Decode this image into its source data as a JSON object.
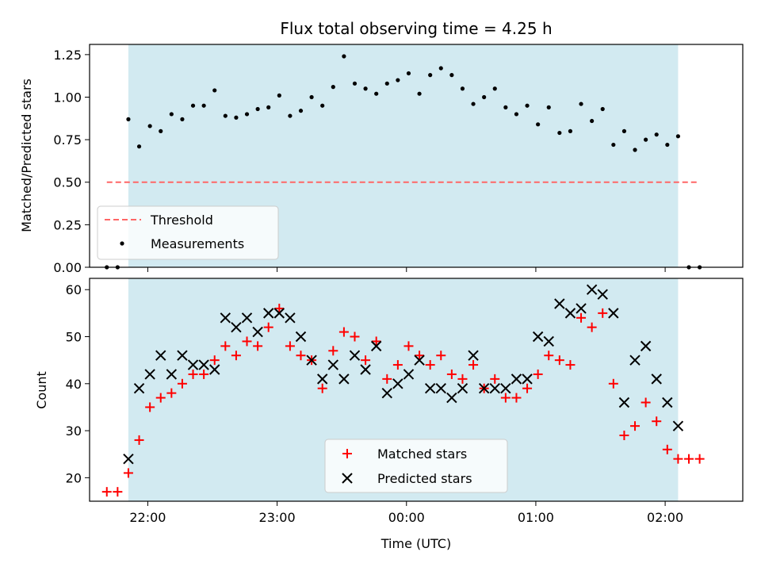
{
  "chart_data": [
    {
      "type": "scatter",
      "title": "Flux total observing time = 4.25 h",
      "xlabel": "",
      "ylabel": "Matched/Predicted stars",
      "ylim": [
        0,
        1.31
      ],
      "yticks": [
        "0.00",
        "0.25",
        "0.50",
        "0.75",
        "1.00",
        "1.25"
      ],
      "x_ticks": [
        "22:00",
        "23:00",
        "00:00",
        "01:00",
        "02:00"
      ],
      "x_range": [
        "21:33",
        "02:36"
      ],
      "observing_window": [
        "21:51",
        "02:06"
      ],
      "window_color": "#add8e6",
      "legend_position": "lower-left",
      "threshold": {
        "name": "Threshold",
        "value": 0.5,
        "x_range": [
          "21:41",
          "02:16"
        ],
        "color": "#ff6666",
        "style": "dashed"
      },
      "series": [
        {
          "name": "Measurements",
          "color": "#000000",
          "marker": "dot",
          "x": [
            "21:41",
            "21:46",
            "21:51",
            "21:56",
            "22:01",
            "22:06",
            "22:11",
            "22:16",
            "22:21",
            "22:26",
            "22:31",
            "22:36",
            "22:41",
            "22:46",
            "22:51",
            "22:56",
            "23:01",
            "23:06",
            "23:11",
            "23:16",
            "23:21",
            "23:26",
            "23:31",
            "23:36",
            "23:41",
            "23:46",
            "23:51",
            "23:56",
            "00:01",
            "00:06",
            "00:11",
            "00:16",
            "00:21",
            "00:26",
            "00:31",
            "00:36",
            "00:41",
            "00:46",
            "00:51",
            "00:56",
            "01:01",
            "01:06",
            "01:11",
            "01:16",
            "01:21",
            "01:26",
            "01:31",
            "01:36",
            "01:41",
            "01:46",
            "01:51",
            "01:56",
            "02:01",
            "02:06",
            "02:11",
            "02:16"
          ],
          "y": [
            0.0,
            0.0,
            0.87,
            0.71,
            0.83,
            0.8,
            0.9,
            0.87,
            0.95,
            0.95,
            1.04,
            0.89,
            0.88,
            0.9,
            0.93,
            0.94,
            1.01,
            0.89,
            0.92,
            1.0,
            0.95,
            1.06,
            1.24,
            1.08,
            1.05,
            1.02,
            1.08,
            1.1,
            1.14,
            1.02,
            1.13,
            1.17,
            1.13,
            1.05,
            0.96,
            1.0,
            1.05,
            0.94,
            0.9,
            0.95,
            0.84,
            0.94,
            0.79,
            0.8,
            0.96,
            0.86,
            0.93,
            0.72,
            0.8,
            0.69,
            0.75,
            0.78,
            0.72,
            0.77,
            0.0,
            0.0
          ]
        }
      ]
    },
    {
      "type": "scatter",
      "title": "",
      "xlabel": "Time (UTC)",
      "ylabel": "Count",
      "ylim": [
        15,
        62.4
      ],
      "yticks": [
        "20",
        "30",
        "40",
        "50",
        "60"
      ],
      "x_ticks": [
        "22:00",
        "23:00",
        "00:00",
        "01:00",
        "02:00"
      ],
      "x_range": [
        "21:33",
        "02:36"
      ],
      "observing_window": [
        "21:51",
        "02:06"
      ],
      "window_color": "#add8e6",
      "legend_position": "lower-center",
      "series": [
        {
          "name": "Matched stars",
          "color": "#ff0000",
          "marker": "plus",
          "x": [
            "21:41",
            "21:46",
            "21:51",
            "21:56",
            "22:01",
            "22:06",
            "22:11",
            "22:16",
            "22:21",
            "22:26",
            "22:31",
            "22:36",
            "22:41",
            "22:46",
            "22:51",
            "22:56",
            "23:01",
            "23:06",
            "23:11",
            "23:16",
            "23:21",
            "23:26",
            "23:31",
            "23:36",
            "23:41",
            "23:46",
            "23:51",
            "23:56",
            "00:01",
            "00:06",
            "00:11",
            "00:16",
            "00:21",
            "00:26",
            "00:31",
            "00:36",
            "00:41",
            "00:46",
            "00:51",
            "00:56",
            "01:01",
            "01:06",
            "01:11",
            "01:16",
            "01:21",
            "01:26",
            "01:31",
            "01:36",
            "01:41",
            "01:46",
            "01:51",
            "01:56",
            "02:01",
            "02:06",
            "02:11",
            "02:16"
          ],
          "y": [
            17,
            17,
            21,
            28,
            35,
            37,
            38,
            40,
            42,
            42,
            45,
            48,
            46,
            49,
            48,
            52,
            56,
            48,
            46,
            45,
            39,
            47,
            51,
            50,
            45,
            49,
            41,
            44,
            48,
            46,
            44,
            46,
            42,
            41,
            44,
            39,
            41,
            37,
            37,
            39,
            42,
            46,
            45,
            44,
            54,
            52,
            55,
            40,
            29,
            31,
            36,
            32,
            26,
            24,
            24,
            24
          ]
        },
        {
          "name": "Predicted stars",
          "color": "#000000",
          "marker": "cross",
          "x": [
            "21:51",
            "21:56",
            "22:01",
            "22:06",
            "22:11",
            "22:16",
            "22:21",
            "22:26",
            "22:31",
            "22:36",
            "22:41",
            "22:46",
            "22:51",
            "22:56",
            "23:01",
            "23:06",
            "23:11",
            "23:16",
            "23:21",
            "23:26",
            "23:31",
            "23:36",
            "23:41",
            "23:46",
            "23:51",
            "23:56",
            "00:01",
            "00:06",
            "00:11",
            "00:16",
            "00:21",
            "00:26",
            "00:31",
            "00:36",
            "00:41",
            "00:46",
            "00:51",
            "00:56",
            "01:01",
            "01:06",
            "01:11",
            "01:16",
            "01:21",
            "01:26",
            "01:31",
            "01:36",
            "01:41",
            "01:46",
            "01:51",
            "01:56",
            "02:01",
            "02:06"
          ],
          "y": [
            24,
            39,
            42,
            46,
            42,
            46,
            44,
            44,
            43,
            54,
            52,
            54,
            51,
            55,
            55,
            54,
            50,
            45,
            41,
            44,
            41,
            46,
            43,
            48,
            38,
            40,
            42,
            45,
            39,
            39,
            37,
            39,
            46,
            39,
            39,
            39,
            41,
            41,
            50,
            49,
            57,
            55,
            56,
            60,
            59,
            55,
            36,
            45,
            48,
            41,
            36,
            31
          ]
        }
      ]
    }
  ]
}
